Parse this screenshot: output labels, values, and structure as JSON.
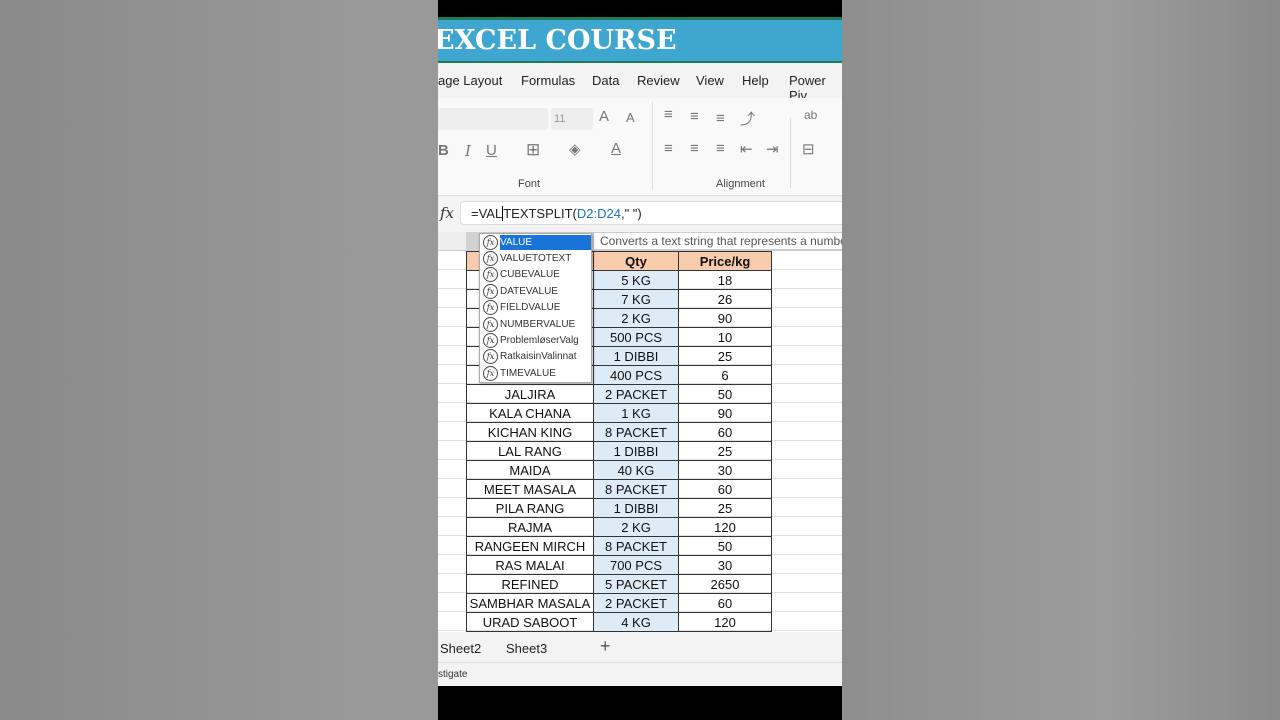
{
  "banner": {
    "title": "EXCEL COURSE"
  },
  "menu": [
    "age Layout",
    "Formulas",
    "Data",
    "Review",
    "View",
    "Help",
    "Power Piv"
  ],
  "ribbon": {
    "font_size": "11",
    "font_group": "Font",
    "alignment_group": "Alignment"
  },
  "formula": {
    "fx": "fx",
    "prefix": "=VAL",
    "func": "TEXTSPLIT(",
    "ref": "D2:D24",
    "suffix": ",\" \")"
  },
  "autocomplete": [
    "VALUE",
    "VALUETOTEXT",
    "CUBEVALUE",
    "DATEVALUE",
    "FIELDVALUE",
    "NUMBERVALUE",
    "ProblemløserValg",
    "RatkaisinValinnat",
    "TIMEVALUE"
  ],
  "tooltip": "Converts a text string that represents a number",
  "table": {
    "headers": [
      "",
      "Qty",
      "Price/kg"
    ],
    "rows": [
      [
        "",
        "5 KG",
        "18"
      ],
      [
        "",
        "7 KG",
        "26"
      ],
      [
        "",
        "2 KG",
        "90"
      ],
      [
        "",
        "500 PCS",
        "10"
      ],
      [
        "",
        "1 DIBBI",
        "25"
      ],
      [
        "",
        "400 PCS",
        "6"
      ],
      [
        "JALJIRA",
        "2 PACKET",
        "50"
      ],
      [
        "KALA CHANA",
        "1 KG",
        "90"
      ],
      [
        "KICHAN KING",
        "8 PACKET",
        "60"
      ],
      [
        "LAL RANG",
        "1 DIBBI",
        "25"
      ],
      [
        "MAIDA",
        "40 KG",
        "30"
      ],
      [
        "MEET MASALA",
        "8 PACKET",
        "60"
      ],
      [
        "PILA RANG",
        "1 DIBBI",
        "25"
      ],
      [
        "RAJMA",
        "2 KG",
        "120"
      ],
      [
        "RANGEEN MIRCH",
        "8 PACKET",
        "50"
      ],
      [
        "RAS MALAI",
        "700 PCS",
        "30"
      ],
      [
        "REFINED",
        "5 PACKET",
        "2650"
      ],
      [
        "SAMBHAR MASALA",
        "2 PACKET",
        "60"
      ],
      [
        "URAD SABOOT",
        "4 KG",
        "120"
      ]
    ]
  },
  "sheets": [
    "Sheet2",
    "Sheet3"
  ],
  "add_sheet": "+",
  "status": "stigate"
}
